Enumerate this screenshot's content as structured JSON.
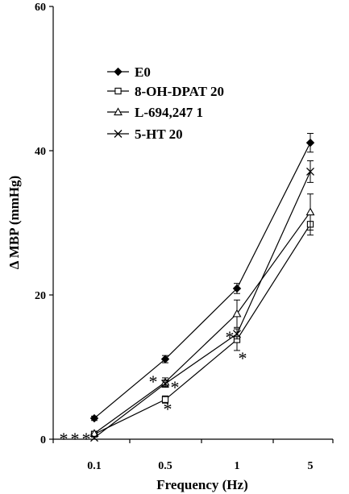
{
  "chart_data": {
    "type": "line",
    "title": "",
    "xlabel": "Frequency (Hz)",
    "ylabel": "Δ MBP (mmHg)",
    "categories": [
      "0.1",
      "0.5",
      "1",
      "5"
    ],
    "ylim": [
      0,
      60
    ],
    "yticks": [
      "0",
      "20",
      "40",
      "60"
    ],
    "grid": false,
    "legend_position": "top-left",
    "series": [
      {
        "name": "E0",
        "marker": "filled-diamond",
        "values": [
          2.9,
          11.1,
          20.9,
          41.1
        ],
        "errors": [
          0.3,
          0.5,
          0.7,
          1.3
        ]
      },
      {
        "name": "8-OH-DPAT 20",
        "marker": "open-square",
        "values": [
          0.7,
          5.5,
          13.8,
          29.8
        ],
        "errors": [
          0.3,
          0.5,
          1.5,
          1.5
        ]
      },
      {
        "name": "L-694,247 1",
        "marker": "open-triangle",
        "values": [
          0.8,
          7.9,
          17.4,
          31.5
        ],
        "errors": [
          0.3,
          0.6,
          1.9,
          2.5
        ]
      },
      {
        "name": "5-HT 20",
        "marker": "cross",
        "values": [
          0.2,
          7.7,
          14.6,
          37.1
        ],
        "errors": [
          0.2,
          0.5,
          0.7,
          1.5
        ]
      }
    ],
    "annotations": [
      "*",
      "*",
      "*",
      "*",
      "*",
      "*",
      "*",
      "*"
    ]
  }
}
